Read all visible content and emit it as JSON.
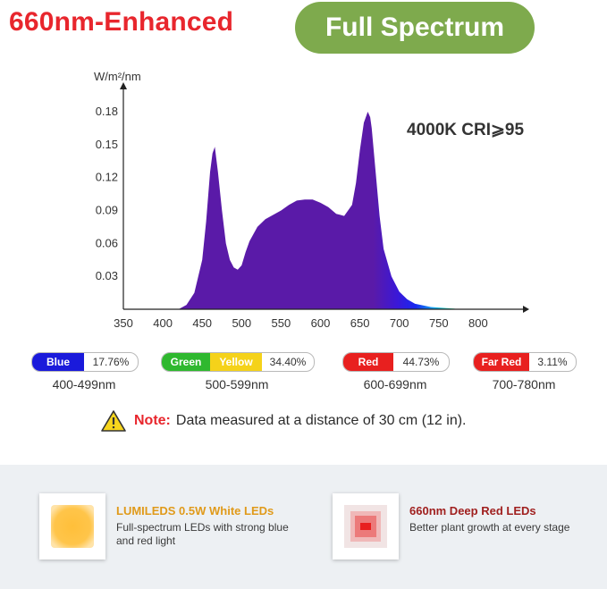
{
  "header": {
    "title": "660nm-Enhanced",
    "badge": "Full Spectrum"
  },
  "chart_data": {
    "type": "area",
    "unit_label": "W/m²/nm",
    "annotation": "4000K CRI⩾95",
    "x_ticks": [
      350,
      400,
      450,
      500,
      550,
      600,
      650,
      700,
      750,
      800
    ],
    "y_ticks": [
      "0.03",
      "0.06",
      "0.09",
      "0.12",
      "0.15",
      "0.18"
    ],
    "xlim": [
      350,
      850
    ],
    "ylim": [
      0,
      0.2
    ],
    "series": [
      {
        "x": [
          420,
          430,
          440,
          450,
          455,
          460,
          463,
          466,
          470,
          475,
          480,
          485,
          490,
          495,
          500,
          505,
          510,
          520,
          530,
          540,
          550,
          560,
          570,
          580,
          590,
          600,
          610,
          620,
          630,
          640,
          645,
          650,
          655,
          660,
          663,
          665,
          670,
          675,
          680,
          690,
          700,
          710,
          720,
          740,
          760,
          780
        ],
        "values": [
          0.0,
          0.004,
          0.015,
          0.045,
          0.08,
          0.125,
          0.142,
          0.148,
          0.125,
          0.09,
          0.06,
          0.045,
          0.038,
          0.036,
          0.04,
          0.052,
          0.062,
          0.075,
          0.082,
          0.086,
          0.09,
          0.095,
          0.099,
          0.1,
          0.1,
          0.097,
          0.093,
          0.087,
          0.085,
          0.095,
          0.115,
          0.145,
          0.17,
          0.18,
          0.175,
          0.165,
          0.125,
          0.085,
          0.055,
          0.03,
          0.016,
          0.009,
          0.005,
          0.002,
          0.001,
          0.0
        ]
      }
    ]
  },
  "legend": [
    {
      "segments": [
        {
          "label": "Blue",
          "color": "#1a1adb"
        }
      ],
      "percent": "17.76%",
      "range": "400-499nm"
    },
    {
      "segments": [
        {
          "label": "Green",
          "color": "#2fb82f"
        },
        {
          "label": "Yellow",
          "color": "#f5d21a"
        }
      ],
      "percent": "34.40%",
      "range": "500-599nm"
    },
    {
      "segments": [
        {
          "label": "Red",
          "color": "#e8201f"
        }
      ],
      "percent": "44.73%",
      "range": "600-699nm"
    },
    {
      "segments": [
        {
          "label": "Far Red",
          "color": "#e8201f"
        }
      ],
      "percent": "3.11%",
      "range": "700-780nm"
    }
  ],
  "note": {
    "label": "Note:",
    "text": "Data measured at a distance of 30 cm (12 in)."
  },
  "features": [
    {
      "title": "LUMILEDS 0.5W White LEDs",
      "title_color": "#e09a1a",
      "desc": "Full-spectrum LEDs with strong blue and red light"
    },
    {
      "title": "660nm Deep Red LEDs",
      "title_color": "#a0201f",
      "desc": "Better plant growth at every stage"
    }
  ],
  "colors": {
    "accent_red": "#e8262d",
    "badge_green": "#7eaa4d"
  }
}
